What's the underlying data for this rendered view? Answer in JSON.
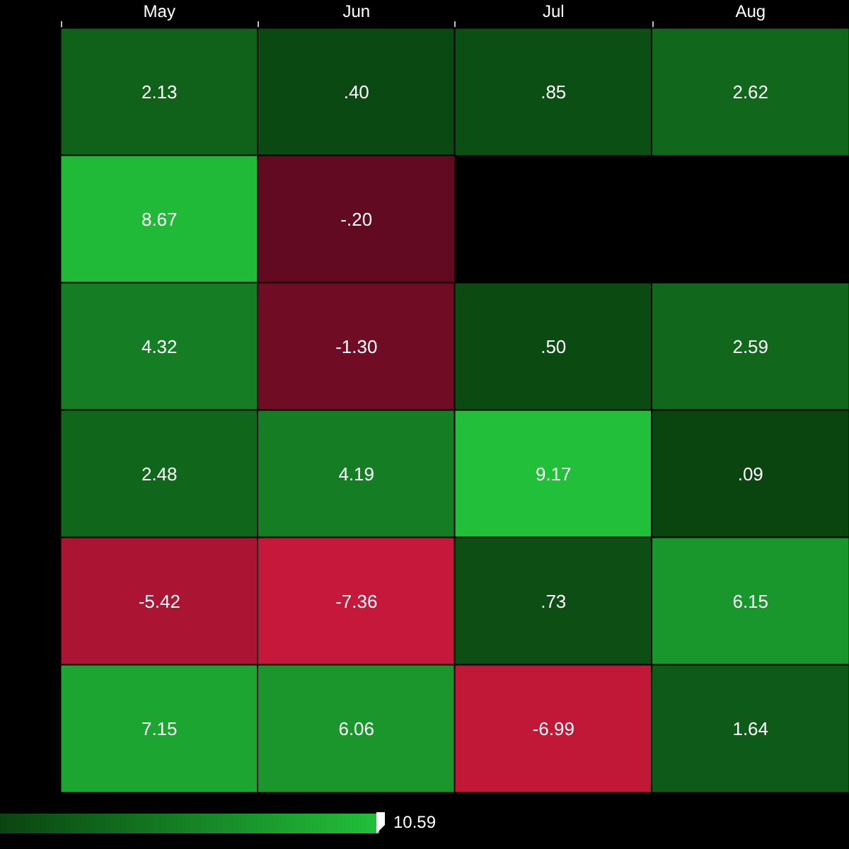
{
  "chart_data": {
    "type": "heatmap",
    "categories": [
      "May",
      "Jun",
      "Jul",
      "Aug"
    ],
    "y_categories": [
      null,
      null,
      null,
      null,
      null,
      null
    ],
    "cells": [
      [
        2.13,
        0.4,
        0.85,
        2.62
      ],
      [
        8.67,
        -0.2,
        null,
        null
      ],
      [
        4.32,
        -1.3,
        0.5,
        2.59
      ],
      [
        2.48,
        4.19,
        9.17,
        0.09
      ],
      [
        -5.42,
        -7.36,
        0.73,
        6.15
      ],
      [
        7.15,
        6.06,
        -6.99,
        1.64
      ]
    ],
    "cell_labels": [
      [
        "2.13",
        ".40",
        ".85",
        "2.62"
      ],
      [
        "8.67",
        "-.20",
        null,
        null
      ],
      [
        "4.32",
        "-1.30",
        ".50",
        "2.59"
      ],
      [
        "2.48",
        "4.19",
        "9.17",
        ".09"
      ],
      [
        "-5.42",
        "-7.36",
        ".73",
        "6.15"
      ],
      [
        "7.15",
        "6.06",
        "-6.99",
        "1.64"
      ]
    ],
    "annotations": [
      "10.59"
    ]
  }
}
